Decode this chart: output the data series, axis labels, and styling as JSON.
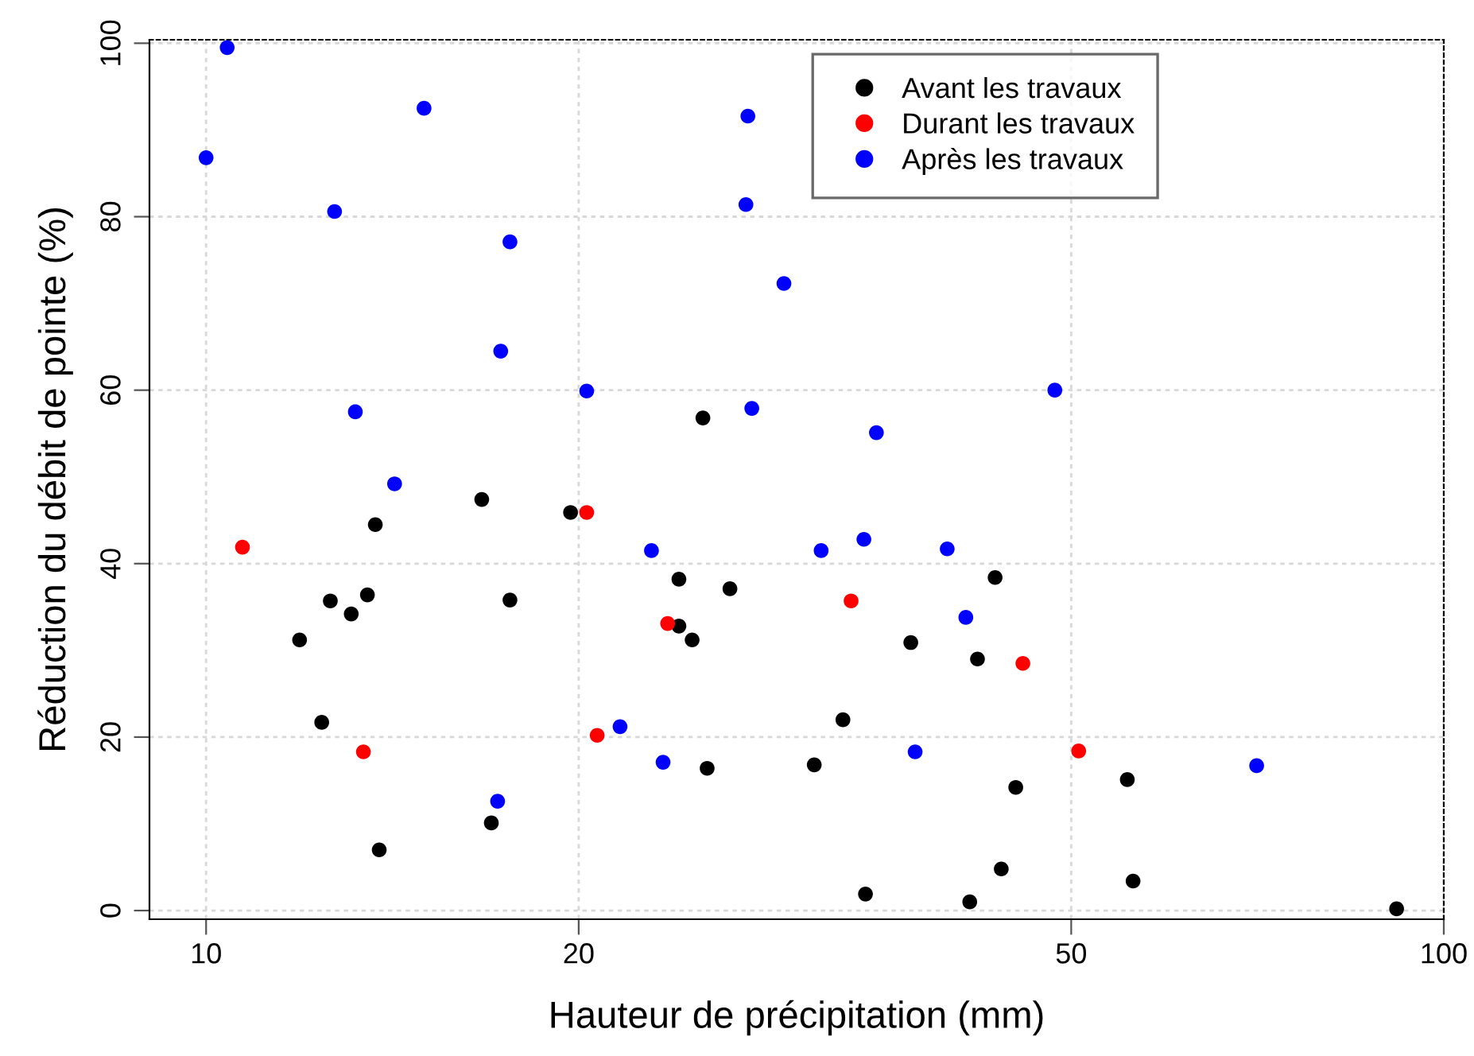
{
  "chart_data": {
    "type": "scatter",
    "xlabel": "Hauteur de précipitation (mm)",
    "ylabel": "Réduction du débit de pointe (%)",
    "log": "x",
    "xlim": [
      9,
      100
    ],
    "ylim": [
      -1,
      100.4
    ],
    "xticks": [
      10,
      20,
      50,
      100
    ],
    "yticks": [
      0,
      20,
      40,
      60,
      80,
      100
    ],
    "grid": true,
    "legend": "top right",
    "marker": "circle",
    "series": [
      {
        "name": "Avant les travaux",
        "color": "#000000",
        "x": [
          11.9,
          12.4,
          12.6,
          13.1,
          13.5,
          13.7,
          13.8,
          16.7,
          17.0,
          17.6,
          19.7,
          25.2,
          24.1,
          24.1,
          24.7,
          25.4,
          26.5,
          31.0,
          32.7,
          34.1,
          37.1,
          41.4,
          42.0,
          43.4,
          43.9,
          45.1,
          55.5,
          56.1,
          91.6
        ],
        "values": [
          31.2,
          21.7,
          35.7,
          34.2,
          36.4,
          44.5,
          7.0,
          47.4,
          10.1,
          35.8,
          45.9,
          56.8,
          32.8,
          38.2,
          31.2,
          16.4,
          37.1,
          16.8,
          22.0,
          1.9,
          30.9,
          1.0,
          29.0,
          38.4,
          4.8,
          14.2,
          15.1,
          3.4,
          0.2
        ]
      },
      {
        "name": "Durant les travaux",
        "color": "#ff0000",
        "x": [
          10.7,
          13.4,
          20.3,
          20.7,
          23.6,
          33.2,
          45.7,
          50.7
        ],
        "values": [
          41.9,
          18.3,
          45.9,
          20.2,
          33.1,
          35.7,
          28.5,
          18.4
        ]
      },
      {
        "name": "Après les travaux",
        "color": "#0000ff",
        "x": [
          10.0,
          10.4,
          12.7,
          13.2,
          14.2,
          15.0,
          17.3,
          17.6,
          17.2,
          20.3,
          21.6,
          22.9,
          23.4,
          27.3,
          27.4,
          27.6,
          29.3,
          31.4,
          34.0,
          34.8,
          37.4,
          39.7,
          41.1,
          48.5,
          70.6
        ],
        "values": [
          86.8,
          99.5,
          80.6,
          57.5,
          49.2,
          92.5,
          64.5,
          77.1,
          12.6,
          59.9,
          21.2,
          41.5,
          17.1,
          81.4,
          91.6,
          57.9,
          72.3,
          41.5,
          42.8,
          55.1,
          18.3,
          41.7,
          33.8,
          60.0,
          16.7
        ]
      }
    ]
  }
}
